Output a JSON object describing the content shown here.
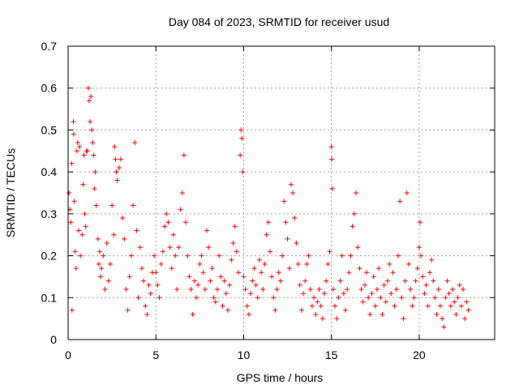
{
  "chart_data": {
    "type": "scatter",
    "title": "Day 084 of 2023, SRMTID for receiver usud",
    "xlabel": "GPS time / hours",
    "ylabel": "SRMTID / TECUs",
    "xlim": [
      0,
      24.3
    ],
    "ylim": [
      0,
      0.7
    ],
    "grid": true,
    "marker": "+",
    "color": "#ff0000",
    "xticks": [
      0,
      5,
      10,
      15,
      20
    ],
    "xtick_labels": [
      "0",
      "5",
      "10",
      "15",
      "20"
    ],
    "yticks": [
      0,
      0.1,
      0.2,
      0.3,
      0.4,
      0.5,
      0.6,
      0.7
    ],
    "ytick_labels": [
      "0",
      "0.1",
      "0.2",
      "0.3",
      "0.4",
      "0.5",
      "0.6",
      "0.7"
    ],
    "series": [
      {
        "name": "SRMTID",
        "points": [
          [
            0.05,
            0.35
          ],
          [
            0.1,
            0.31
          ],
          [
            0.15,
            0.28
          ],
          [
            0.2,
            0.42
          ],
          [
            0.22,
            0.07
          ],
          [
            0.3,
            0.52
          ],
          [
            0.32,
            0.49
          ],
          [
            0.35,
            0.33
          ],
          [
            0.4,
            0.21
          ],
          [
            0.45,
            0.17
          ],
          [
            0.5,
            0.45
          ],
          [
            0.55,
            0.47
          ],
          [
            0.6,
            0.26
          ],
          [
            0.65,
            0.46
          ],
          [
            0.7,
            0.2
          ],
          [
            0.8,
            0.25
          ],
          [
            0.85,
            0.37
          ],
          [
            0.9,
            0.44
          ],
          [
            0.95,
            0.3
          ],
          [
            1.0,
            0.27
          ],
          [
            1.05,
            0.45
          ],
          [
            1.1,
            0.45
          ],
          [
            1.15,
            0.6
          ],
          [
            1.2,
            0.57
          ],
          [
            1.25,
            0.52
          ],
          [
            1.3,
            0.58
          ],
          [
            1.35,
            0.5
          ],
          [
            1.4,
            0.47
          ],
          [
            1.45,
            0.44
          ],
          [
            1.5,
            0.36
          ],
          [
            1.55,
            0.4
          ],
          [
            1.6,
            0.32
          ],
          [
            1.7,
            0.24
          ],
          [
            1.75,
            0.18
          ],
          [
            1.8,
            0.21
          ],
          [
            1.85,
            0.15
          ],
          [
            1.9,
            0.17
          ],
          [
            2.0,
            0.2
          ],
          [
            2.1,
            0.12
          ],
          [
            2.2,
            0.23
          ],
          [
            2.3,
            0.14
          ],
          [
            2.4,
            0.18
          ],
          [
            2.5,
            0.32
          ],
          [
            2.6,
            0.25
          ],
          [
            2.65,
            0.46
          ],
          [
            2.7,
            0.43
          ],
          [
            2.75,
            0.4
          ],
          [
            2.8,
            0.38
          ],
          [
            2.9,
            0.41
          ],
          [
            3.0,
            0.43
          ],
          [
            3.1,
            0.29
          ],
          [
            3.2,
            0.24
          ],
          [
            3.3,
            0.12
          ],
          [
            3.4,
            0.07
          ],
          [
            3.5,
            0.15
          ],
          [
            3.6,
            0.2
          ],
          [
            3.7,
            0.32
          ],
          [
            3.8,
            0.47
          ],
          [
            3.9,
            0.26
          ],
          [
            4.0,
            0.1
          ],
          [
            4.1,
            0.22
          ],
          [
            4.2,
            0.17
          ],
          [
            4.3,
            0.14
          ],
          [
            4.4,
            0.08
          ],
          [
            4.5,
            0.06
          ],
          [
            4.6,
            0.13
          ],
          [
            4.7,
            0.11
          ],
          [
            4.8,
            0.16
          ],
          [
            4.9,
            0.2
          ],
          [
            5.0,
            0.16
          ],
          [
            5.1,
            0.13
          ],
          [
            5.2,
            0.1
          ],
          [
            5.3,
            0.18
          ],
          [
            5.4,
            0.21
          ],
          [
            5.5,
            0.27
          ],
          [
            5.6,
            0.3
          ],
          [
            5.7,
            0.28
          ],
          [
            5.8,
            0.22
          ],
          [
            5.9,
            0.17
          ],
          [
            6.0,
            0.25
          ],
          [
            6.1,
            0.2
          ],
          [
            6.2,
            0.12
          ],
          [
            6.3,
            0.22
          ],
          [
            6.4,
            0.31
          ],
          [
            6.5,
            0.35
          ],
          [
            6.6,
            0.44
          ],
          [
            6.7,
            0.28
          ],
          [
            6.8,
            0.2
          ],
          [
            6.9,
            0.15
          ],
          [
            7.0,
            0.12
          ],
          [
            7.1,
            0.06
          ],
          [
            7.2,
            0.14
          ],
          [
            7.3,
            0.1
          ],
          [
            7.4,
            0.13
          ],
          [
            7.5,
            0.18
          ],
          [
            7.6,
            0.2
          ],
          [
            7.7,
            0.16
          ],
          [
            7.8,
            0.12
          ],
          [
            7.9,
            0.26
          ],
          [
            8.0,
            0.22
          ],
          [
            8.1,
            0.14
          ],
          [
            8.2,
            0.17
          ],
          [
            8.3,
            0.1
          ],
          [
            8.4,
            0.09
          ],
          [
            8.5,
            0.12
          ],
          [
            8.6,
            0.2
          ],
          [
            8.7,
            0.15
          ],
          [
            8.8,
            0.08
          ],
          [
            8.9,
            0.14
          ],
          [
            9.0,
            0.11
          ],
          [
            9.1,
            0.07
          ],
          [
            9.2,
            0.13
          ],
          [
            9.3,
            0.19
          ],
          [
            9.4,
            0.23
          ],
          [
            9.5,
            0.27
          ],
          [
            9.6,
            0.21
          ],
          [
            9.7,
            0.16
          ],
          [
            9.8,
            0.44
          ],
          [
            9.85,
            0.5
          ],
          [
            9.9,
            0.48
          ],
          [
            9.95,
            0.4
          ],
          [
            10.0,
            0.15
          ],
          [
            10.1,
            0.12
          ],
          [
            10.2,
            0.08
          ],
          [
            10.3,
            0.06
          ],
          [
            10.4,
            0.11
          ],
          [
            10.5,
            0.14
          ],
          [
            10.6,
            0.17
          ],
          [
            10.7,
            0.13
          ],
          [
            10.8,
            0.1
          ],
          [
            10.9,
            0.19
          ],
          [
            11.0,
            0.16
          ],
          [
            11.1,
            0.12
          ],
          [
            11.2,
            0.18
          ],
          [
            11.3,
            0.25
          ],
          [
            11.4,
            0.28
          ],
          [
            11.5,
            0.21
          ],
          [
            11.6,
            0.15
          ],
          [
            11.7,
            0.1
          ],
          [
            11.8,
            0.07
          ],
          [
            11.9,
            0.12
          ],
          [
            12.0,
            0.16
          ],
          [
            12.1,
            0.14
          ],
          [
            12.2,
            0.2
          ],
          [
            12.3,
            0.33
          ],
          [
            12.4,
            0.28
          ],
          [
            12.5,
            0.24
          ],
          [
            12.6,
            0.17
          ],
          [
            12.7,
            0.37
          ],
          [
            12.8,
            0.35
          ],
          [
            12.9,
            0.29
          ],
          [
            13.0,
            0.23
          ],
          [
            13.1,
            0.18
          ],
          [
            13.2,
            0.13
          ],
          [
            13.3,
            0.07
          ],
          [
            13.4,
            0.11
          ],
          [
            13.5,
            0.14
          ],
          [
            13.6,
            0.18
          ],
          [
            13.7,
            0.2
          ],
          [
            13.8,
            0.12
          ],
          [
            13.9,
            0.08
          ],
          [
            14.0,
            0.1
          ],
          [
            14.1,
            0.06
          ],
          [
            14.2,
            0.09
          ],
          [
            14.3,
            0.12
          ],
          [
            14.4,
            0.08
          ],
          [
            14.5,
            0.05
          ],
          [
            14.6,
            0.11
          ],
          [
            14.7,
            0.14
          ],
          [
            14.8,
            0.18
          ],
          [
            14.9,
            0.21
          ],
          [
            15.0,
            0.46
          ],
          [
            15.02,
            0.43
          ],
          [
            15.05,
            0.36
          ],
          [
            15.1,
            0.12
          ],
          [
            15.2,
            0.08
          ],
          [
            15.3,
            0.05
          ],
          [
            15.4,
            0.1
          ],
          [
            15.5,
            0.14
          ],
          [
            15.6,
            0.2
          ],
          [
            15.7,
            0.11
          ],
          [
            15.8,
            0.07
          ],
          [
            15.9,
            0.12
          ],
          [
            16.0,
            0.16
          ],
          [
            16.1,
            0.2
          ],
          [
            16.2,
            0.27
          ],
          [
            16.3,
            0.3
          ],
          [
            16.4,
            0.35
          ],
          [
            16.5,
            0.22
          ],
          [
            16.6,
            0.17
          ],
          [
            16.7,
            0.12
          ],
          [
            16.8,
            0.09
          ],
          [
            16.9,
            0.13
          ],
          [
            17.0,
            0.16
          ],
          [
            17.1,
            0.1
          ],
          [
            17.2,
            0.06
          ],
          [
            17.3,
            0.11
          ],
          [
            17.4,
            0.15
          ],
          [
            17.5,
            0.08
          ],
          [
            17.6,
            0.12
          ],
          [
            17.7,
            0.17
          ],
          [
            17.8,
            0.1
          ],
          [
            17.9,
            0.06
          ],
          [
            18.0,
            0.13
          ],
          [
            18.1,
            0.09
          ],
          [
            18.2,
            0.14
          ],
          [
            18.3,
            0.18
          ],
          [
            18.4,
            0.11
          ],
          [
            18.5,
            0.16
          ],
          [
            18.6,
            0.08
          ],
          [
            18.7,
            0.12
          ],
          [
            18.8,
            0.2
          ],
          [
            18.9,
            0.33
          ],
          [
            19.0,
            0.1
          ],
          [
            19.1,
            0.05
          ],
          [
            19.2,
            0.14
          ],
          [
            19.3,
            0.35
          ],
          [
            19.4,
            0.18
          ],
          [
            19.5,
            0.12
          ],
          [
            19.6,
            0.08
          ],
          [
            19.7,
            0.1
          ],
          [
            19.8,
            0.14
          ],
          [
            19.9,
            0.17
          ],
          [
            20.0,
            0.22
          ],
          [
            20.05,
            0.28
          ],
          [
            20.1,
            0.2
          ],
          [
            20.2,
            0.15
          ],
          [
            20.3,
            0.11
          ],
          [
            20.4,
            0.13
          ],
          [
            20.5,
            0.08
          ],
          [
            20.6,
            0.16
          ],
          [
            20.7,
            0.19
          ],
          [
            20.8,
            0.14
          ],
          [
            20.9,
            0.1
          ],
          [
            21.0,
            0.06
          ],
          [
            21.1,
            0.12
          ],
          [
            21.2,
            0.08
          ],
          [
            21.3,
            0.05
          ],
          [
            21.4,
            0.03
          ],
          [
            21.5,
            0.1
          ],
          [
            21.6,
            0.14
          ],
          [
            21.7,
            0.11
          ],
          [
            21.8,
            0.08
          ],
          [
            21.9,
            0.12
          ],
          [
            22.0,
            0.09
          ],
          [
            22.1,
            0.06
          ],
          [
            22.2,
            0.1
          ],
          [
            22.3,
            0.13
          ],
          [
            22.4,
            0.08
          ],
          [
            22.5,
            0.12
          ],
          [
            22.6,
            0.05
          ],
          [
            22.7,
            0.09
          ],
          [
            22.8,
            0.07
          ]
        ]
      }
    ]
  }
}
